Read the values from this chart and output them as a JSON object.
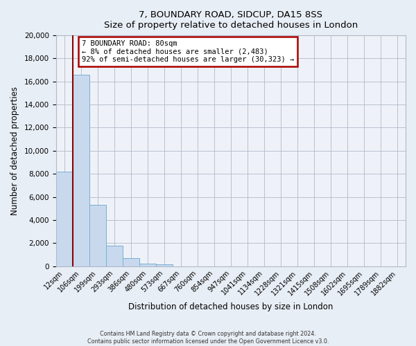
{
  "title": "7, BOUNDARY ROAD, SIDCUP, DA15 8SS",
  "subtitle": "Size of property relative to detached houses in London",
  "xlabel": "Distribution of detached houses by size in London",
  "ylabel": "Number of detached properties",
  "bar_labels": [
    "12sqm",
    "106sqm",
    "199sqm",
    "293sqm",
    "386sqm",
    "480sqm",
    "573sqm",
    "667sqm",
    "760sqm",
    "854sqm",
    "947sqm",
    "1041sqm",
    "1134sqm",
    "1228sqm",
    "1321sqm",
    "1415sqm",
    "1508sqm",
    "1602sqm",
    "1695sqm",
    "1789sqm",
    "1882sqm"
  ],
  "bar_values": [
    8200,
    16600,
    5300,
    1800,
    700,
    220,
    130,
    0,
    0,
    0,
    0,
    0,
    0,
    0,
    0,
    0,
    0,
    0,
    0,
    0,
    0
  ],
  "bar_fill_color": "#c8d9ed",
  "bar_edge_color": "#7aaed6",
  "annotation_title": "7 BOUNDARY ROAD: 80sqm",
  "annotation_line1": "← 8% of detached houses are smaller (2,483)",
  "annotation_line2": "92% of semi-detached houses are larger (30,323) →",
  "annotation_box_color": "#ffffff",
  "annotation_border_color": "#aa0000",
  "marker_line_color": "#8b0000",
  "ylim": [
    0,
    20000
  ],
  "yticks": [
    0,
    2000,
    4000,
    6000,
    8000,
    10000,
    12000,
    14000,
    16000,
    18000,
    20000
  ],
  "footer1": "Contains HM Land Registry data © Crown copyright and database right 2024.",
  "footer2": "Contains public sector information licensed under the Open Government Licence v3.0.",
  "bg_color": "#e8eef5",
  "plot_bg_color": "#eef2f8"
}
